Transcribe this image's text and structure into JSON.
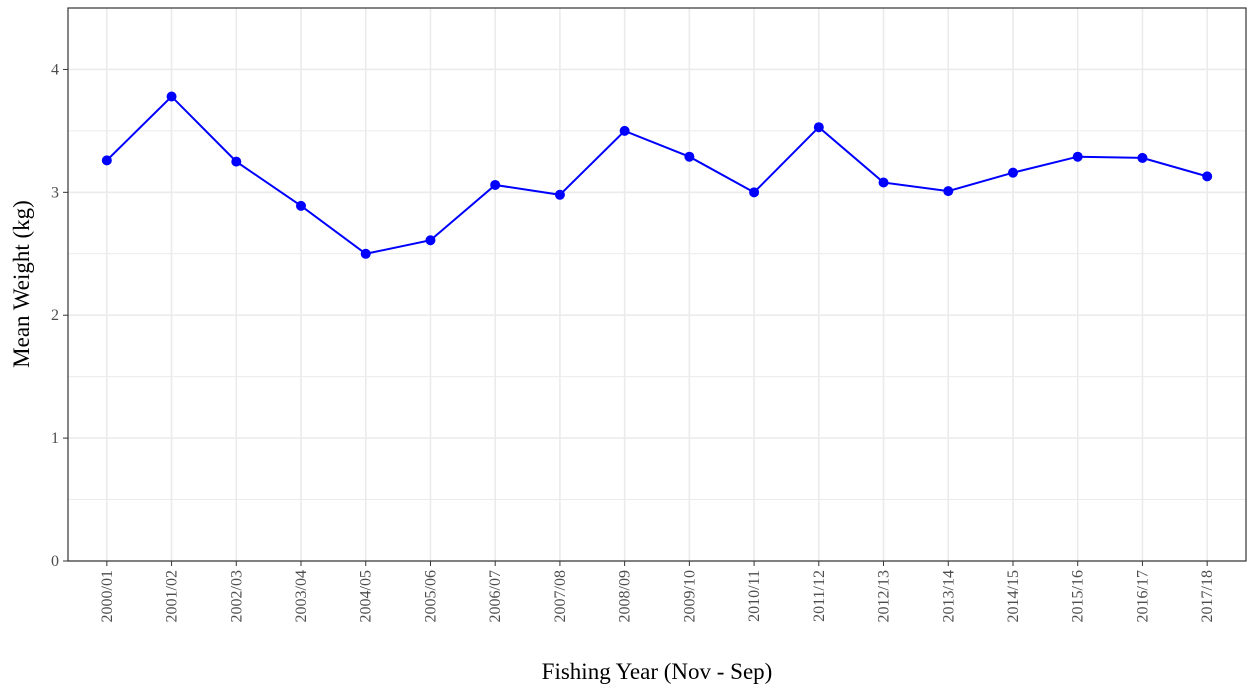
{
  "chart_data": {
    "type": "line",
    "x_label": "Fishing Year (Nov - Sep)",
    "y_label": "Mean Weight (kg)",
    "categories": [
      "2000/01",
      "2001/02",
      "2002/03",
      "2003/04",
      "2004/05",
      "2005/06",
      "2006/07",
      "2007/08",
      "2008/09",
      "2009/10",
      "2010/11",
      "2011/12",
      "2012/13",
      "2013/14",
      "2014/15",
      "2015/16",
      "2016/17",
      "2017/18"
    ],
    "series": [
      {
        "color": "#0000ff",
        "values": [
          3.26,
          3.78,
          3.25,
          2.89,
          2.5,
          2.61,
          3.06,
          2.98,
          3.5,
          3.29,
          3.0,
          3.53,
          3.08,
          3.01,
          3.16,
          3.29,
          3.28,
          3.13
        ]
      }
    ],
    "ylim": [
      0,
      4.5
    ],
    "yticks": [
      0,
      1,
      2,
      3,
      4
    ],
    "grid": true
  }
}
